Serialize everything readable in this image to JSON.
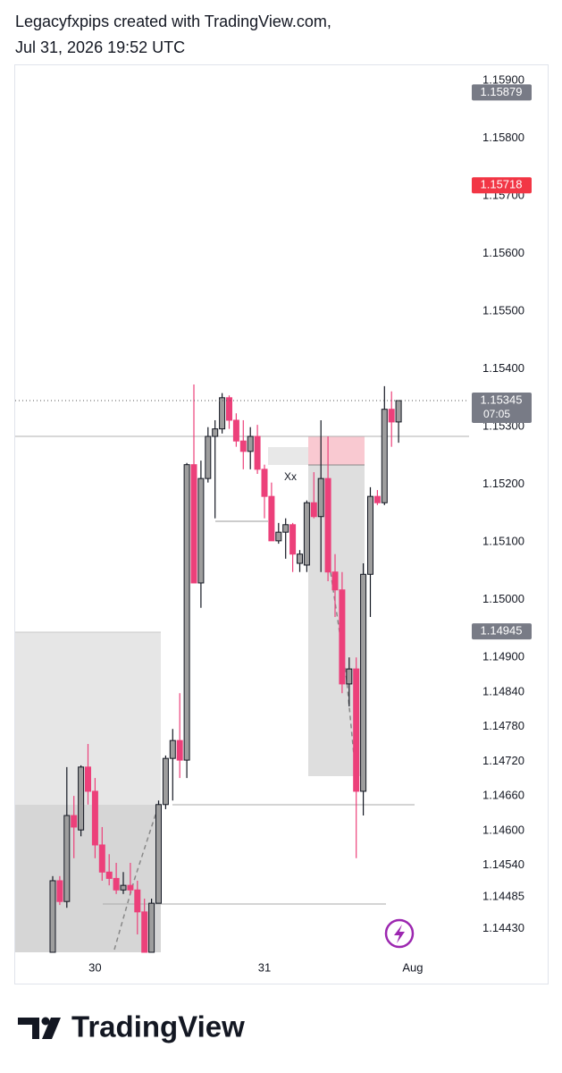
{
  "chart_data": {
    "type": "candlestick",
    "title": "Legacyfxpips created with TradingView.com,",
    "subtitle": "Jul 31, 2026 19:52 UTC",
    "footer": "TradingView",
    "annotation": "Xx",
    "countdown": "07:05",
    "up_color": "#9e9e9e",
    "down_color": "#ec407a",
    "categories": [
      null,
      null,
      null,
      null,
      null,
      null,
      "30",
      null,
      null,
      null,
      null,
      null,
      null,
      null,
      null,
      null,
      null,
      null,
      null,
      null,
      null,
      null,
      null,
      null,
      null,
      null,
      null,
      null,
      null,
      null,
      "31",
      null,
      null,
      null,
      null,
      null,
      null,
      null,
      null,
      null,
      null,
      null,
      null,
      null,
      null,
      null,
      null,
      null,
      null,
      null,
      null,
      "Aug"
    ],
    "open": [
      1.14389,
      1.14513,
      1.14477,
      1.14626,
      1.14601,
      1.1471,
      1.14668,
      1.14575,
      1.14528,
      1.14517,
      1.14497,
      1.14505,
      1.14497,
      1.14459,
      1.14389,
      1.14474,
      1.14645,
      1.14725,
      1.14756,
      1.14722,
      1.15234,
      1.15029,
      1.1521,
      1.15283,
      1.15296,
      1.1535,
      1.15311,
      1.15275,
      1.15257,
      1.15283,
      1.15226,
      1.15179,
      1.15102,
      1.15117,
      1.1513,
      1.15063,
      1.1506,
      1.15168,
      1.15144,
      1.1521,
      1.15048,
      1.15017,
      1.14854,
      1.1488,
      1.14668,
      1.15044,
      1.15179,
      1.15168,
      1.1533,
      1.15308,
      null,
      null
    ],
    "high": [
      1.14521,
      1.14521,
      1.1471,
      1.1466,
      1.14713,
      1.1475,
      1.14691,
      1.14606,
      1.14559,
      1.14544,
      1.14528,
      1.14544,
      1.14513,
      1.14482,
      1.14482,
      1.14652,
      1.1473,
      1.14776,
      1.14838,
      1.15237,
      1.15373,
      1.15241,
      1.15299,
      1.15311,
      1.15358,
      1.15354,
      1.15323,
      1.15311,
      1.15299,
      1.15303,
      1.15234,
      1.15203,
      1.15133,
      1.15141,
      1.15133,
      1.15086,
      1.15172,
      1.15221,
      1.15311,
      1.15283,
      1.15079,
      1.15048,
      1.149,
      1.149,
      1.15063,
      1.15195,
      1.1519,
      1.1537,
      1.15361,
      1.15342,
      null,
      null
    ],
    "low": [
      1.14389,
      1.14471,
      1.14466,
      1.14552,
      1.1459,
      1.14645,
      1.14552,
      1.14513,
      1.14505,
      1.1449,
      1.1449,
      1.1449,
      1.1442,
      1.14389,
      1.14389,
      1.14474,
      1.14637,
      1.14652,
      1.14691,
      1.14691,
      1.15032,
      1.14986,
      1.15203,
      1.15141,
      1.15288,
      1.15296,
      1.15265,
      1.15226,
      1.15226,
      1.15218,
      1.15141,
      1.15102,
      1.15097,
      1.15071,
      1.15048,
      1.15048,
      1.15048,
      1.15141,
      1.15048,
      1.15032,
      1.1497,
      1.14838,
      1.14815,
      1.14552,
      1.14626,
      1.1497,
      1.15164,
      1.15164,
      1.15265,
      1.15272,
      null,
      null
    ],
    "close": [
      1.14513,
      1.14477,
      1.14626,
      1.14606,
      1.1471,
      1.14668,
      1.14575,
      1.14528,
      1.14517,
      1.14497,
      1.14505,
      1.14497,
      1.14459,
      1.14389,
      1.14474,
      1.14645,
      1.14725,
      1.14756,
      1.14722,
      1.15234,
      1.15029,
      1.1521,
      1.15283,
      1.15296,
      1.1535,
      1.15311,
      1.15275,
      1.15257,
      1.15283,
      1.15226,
      1.15179,
      1.15102,
      1.15117,
      1.1513,
      1.15079,
      1.15079,
      1.15168,
      1.15144,
      1.1521,
      1.15048,
      1.15017,
      1.14854,
      1.1488,
      1.14668,
      1.15044,
      1.15179,
      1.15168,
      1.1533,
      1.15308,
      1.15345,
      null,
      null
    ],
    "ylim": [
      1.14389,
      1.15923
    ],
    "yticks": [
      {
        "value": 1.159,
        "label": "1.15900"
      },
      {
        "value": 1.158,
        "label": "1.15800"
      },
      {
        "value": 1.157,
        "label": "1.15700"
      },
      {
        "value": 1.156,
        "label": "1.15600"
      },
      {
        "value": 1.155,
        "label": "1.15500"
      },
      {
        "value": 1.154,
        "label": "1.15400"
      },
      {
        "value": 1.153,
        "label": "1.15300"
      },
      {
        "value": 1.152,
        "label": "1.15200"
      },
      {
        "value": 1.151,
        "label": "1.15100"
      },
      {
        "value": 1.15,
        "label": "1.15000"
      },
      {
        "value": 1.149,
        "label": "1.14900"
      },
      {
        "value": 1.1484,
        "label": "1.14840"
      },
      {
        "value": 1.1478,
        "label": "1.14780"
      },
      {
        "value": 1.1472,
        "label": "1.14720"
      },
      {
        "value": 1.1466,
        "label": "1.14660"
      },
      {
        "value": 1.146,
        "label": "1.14600"
      },
      {
        "value": 1.1454,
        "label": "1.14540"
      },
      {
        "value": 1.14485,
        "label": "1.14485"
      },
      {
        "value": 1.1443,
        "label": "1.14430"
      }
    ],
    "price_tags": [
      {
        "value": 1.15879,
        "color": "#787b86"
      },
      {
        "value": 1.15718,
        "color": "#f23645"
      },
      {
        "value": 1.14945,
        "color": "#787b86"
      },
      {
        "value": 1.15345,
        "color": "#787b86"
      }
    ],
    "grid": false
  }
}
